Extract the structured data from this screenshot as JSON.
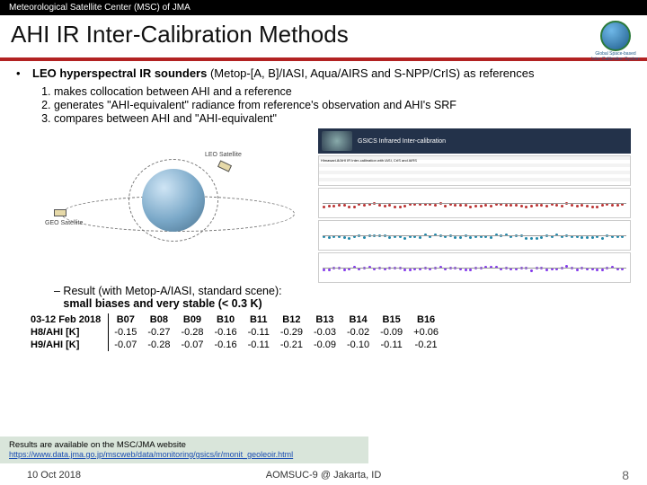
{
  "header": {
    "org": "Meteorological Satellite Center (MSC) of JMA"
  },
  "title": "AHI IR Inter-Calibration Methods",
  "logo": {
    "line1": "Global Space-based",
    "line2": "Inter-Calibration System"
  },
  "bullet": {
    "lead": "LEO hyperspectral IR sounders",
    "rest": " (Metop-[A, B]/IASI, Aqua/AIRS and S-NPP/CrIS) as references"
  },
  "steps": [
    "makes collocation between AHI and a reference",
    "generates \"AHI-equivalent\" radiance from reference's observation and AHI's SRF",
    "compares between AHI and \"AHI-equivalent\""
  ],
  "diagram": {
    "leo_label": "LEO Satellite",
    "geo_label": "GEO Satellite"
  },
  "right_panel": {
    "title": "GSICS Infrared Inter-calibration",
    "table_caption": "Himawari-8/AHI IR Inter-calibration with IASI, CrIS and AIRS"
  },
  "mini_charts": [
    {
      "color": "#b33",
      "baseline": 0.55
    },
    {
      "color": "#28a",
      "baseline": 0.5
    },
    {
      "color": "#8338ec",
      "baseline": 0.48
    }
  ],
  "result": {
    "prefix": "– Result (with Metop-A/IASI, standard scene):",
    "bold": "small biases and very stable (< 0.3 K)"
  },
  "table": {
    "date_range": "03-12 Feb 2018",
    "row_labels": [
      "H8/AHI [K]",
      "H9/AHI [K]"
    ],
    "cols": [
      "B07",
      "B08",
      "B09",
      "B10",
      "B11",
      "B12",
      "B13",
      "B14",
      "B15",
      "B16"
    ],
    "rows": [
      [
        "-0.15",
        "-0.27",
        "-0.28",
        "-0.16",
        "-0.11",
        "-0.29",
        "-0.03",
        "-0.02",
        "-0.09",
        "+0.06"
      ],
      [
        "-0.07",
        "-0.28",
        "-0.07",
        "-0.16",
        "-0.11",
        "-0.21",
        "-0.09",
        "-0.10",
        "-0.11",
        "-0.21"
      ]
    ]
  },
  "note": {
    "text": "Results are available on the MSC/JMA website",
    "url": "https://www.data.jma.go.jp/mscweb/data/monitoring/gsics/ir/monit_geoleoir.html"
  },
  "footer": {
    "date": "10 Oct 2018",
    "venue": "AOMSUC-9 @ Jakarta, ID",
    "page": "8"
  }
}
